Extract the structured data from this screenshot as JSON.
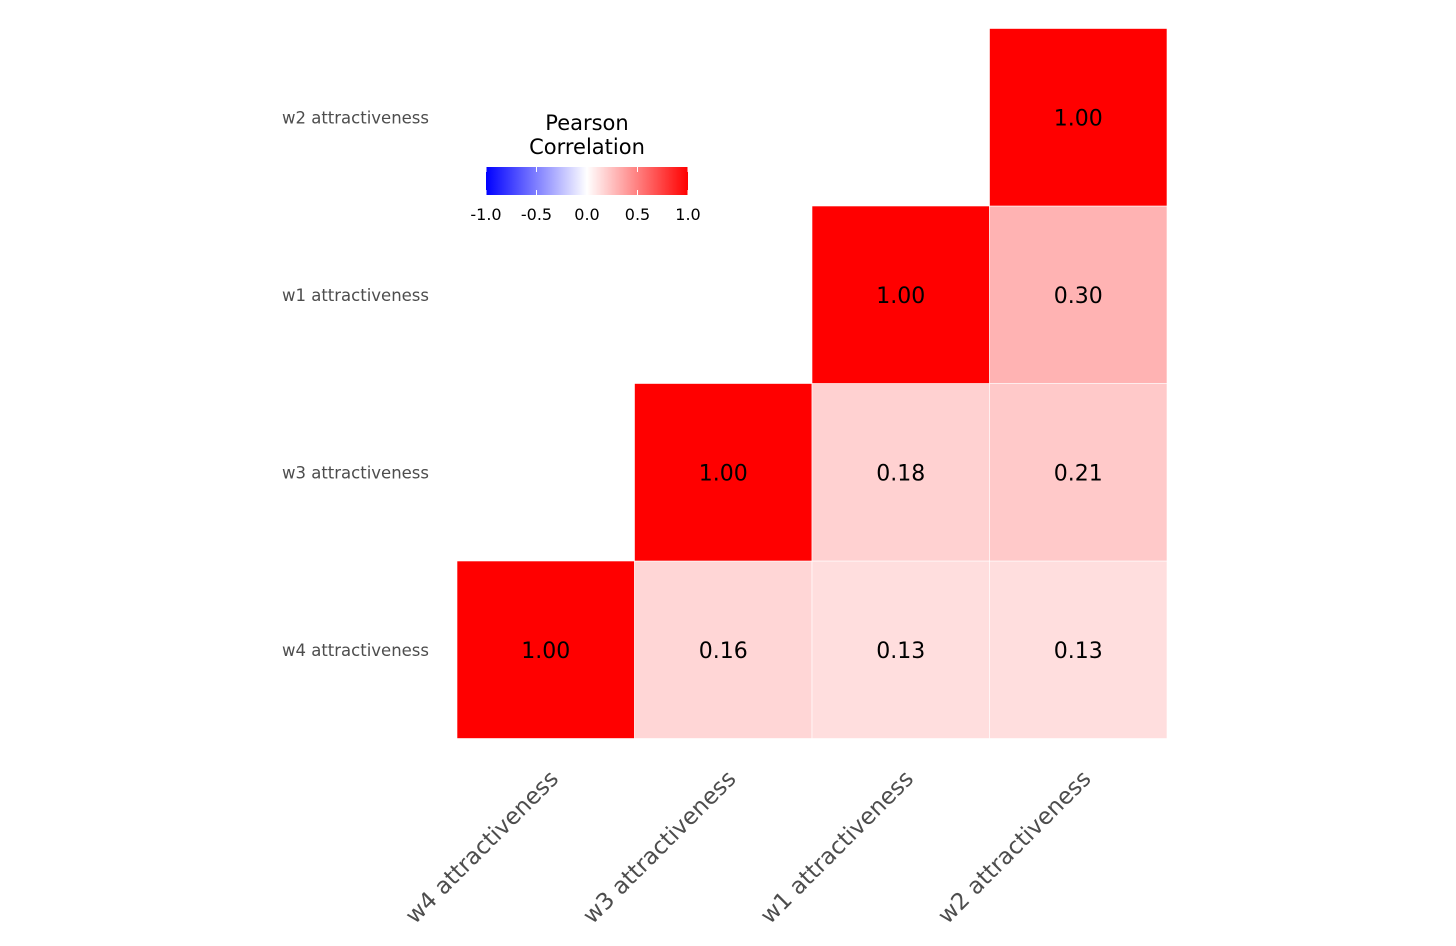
{
  "chart_data": {
    "type": "heatmap",
    "subtype": "lower-triangle correlation matrix",
    "x_categories": [
      "w4 attractiveness",
      "w3 attractiveness",
      "w1 attractiveness",
      "w2 attractiveness"
    ],
    "y_categories": [
      "w4 attractiveness",
      "w3 attractiveness",
      "w1 attractiveness",
      "w2 attractiveness"
    ],
    "cells": [
      {
        "x": "w4 attractiveness",
        "y": "w4 attractiveness",
        "value": 1.0,
        "label": "1.00"
      },
      {
        "x": "w3 attractiveness",
        "y": "w4 attractiveness",
        "value": 0.16,
        "label": "0.16"
      },
      {
        "x": "w1 attractiveness",
        "y": "w4 attractiveness",
        "value": 0.13,
        "label": "0.13"
      },
      {
        "x": "w2 attractiveness",
        "y": "w4 attractiveness",
        "value": 0.13,
        "label": "0.13"
      },
      {
        "x": "w3 attractiveness",
        "y": "w3 attractiveness",
        "value": 1.0,
        "label": "1.00"
      },
      {
        "x": "w1 attractiveness",
        "y": "w3 attractiveness",
        "value": 0.18,
        "label": "0.18"
      },
      {
        "x": "w2 attractiveness",
        "y": "w3 attractiveness",
        "value": 0.21,
        "label": "0.21"
      },
      {
        "x": "w1 attractiveness",
        "y": "w1 attractiveness",
        "value": 1.0,
        "label": "1.00"
      },
      {
        "x": "w2 attractiveness",
        "y": "w1 attractiveness",
        "value": 0.3,
        "label": "0.30"
      },
      {
        "x": "w2 attractiveness",
        "y": "w2 attractiveness",
        "value": 1.0,
        "label": "1.00"
      }
    ],
    "legend": {
      "title_lines": [
        "Pearson",
        "Correlation"
      ],
      "limits": [
        -1,
        1
      ],
      "ticks": [
        -1.0,
        -0.5,
        0.0,
        0.5,
        1.0
      ],
      "tick_labels": [
        "-1.0",
        "-0.5",
        "0.0",
        "0.5",
        "1.0"
      ],
      "placement": "top-left, inside plot"
    },
    "colors": {
      "low": "#0000ff",
      "mid": "#ffffff",
      "high": "#ff0000"
    },
    "grid": false
  }
}
